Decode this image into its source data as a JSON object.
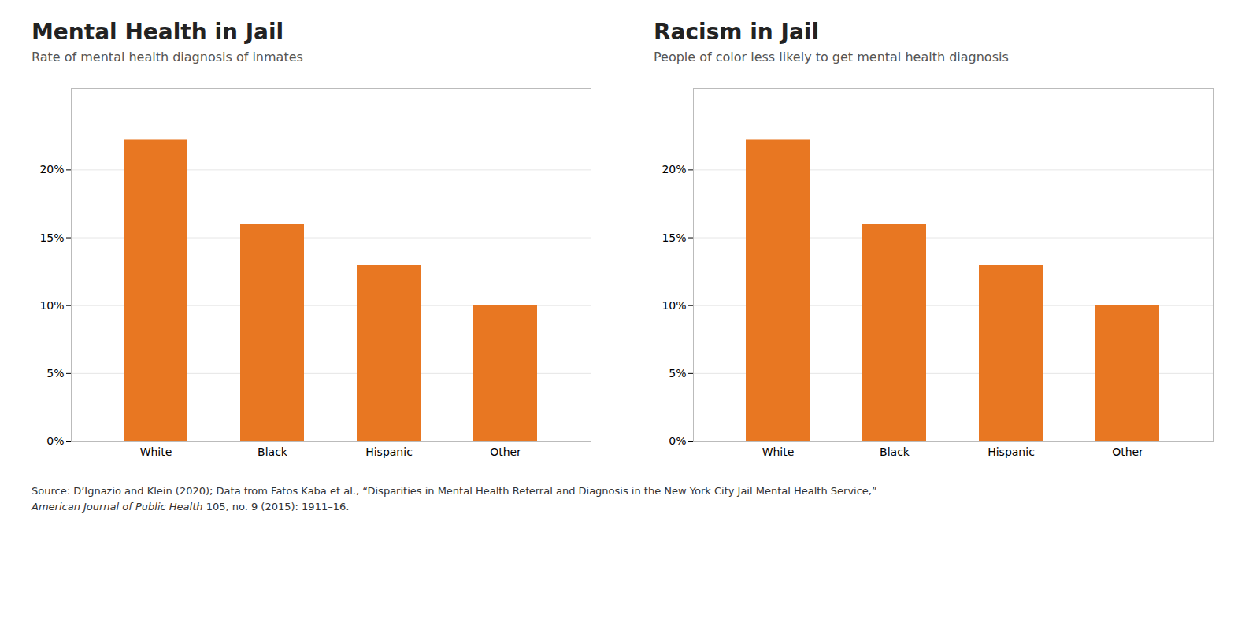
{
  "chart_data": [
    {
      "type": "bar",
      "title": "Mental Health in Jail",
      "subtitle": "Rate of mental health diagnosis of inmates",
      "categories": [
        "White",
        "Black",
        "Hispanic",
        "Other"
      ],
      "values": [
        0.222,
        0.16,
        0.13,
        0.1
      ],
      "color": "#E87722",
      "ylim": [
        0,
        0.26
      ],
      "yticks": [
        {
          "value": 0,
          "label": "0%"
        },
        {
          "value": 0.05,
          "label": "5%"
        },
        {
          "value": 0.1,
          "label": "10%"
        },
        {
          "value": 0.15,
          "label": "15%"
        },
        {
          "value": 0.2,
          "label": "20%"
        }
      ],
      "grid": true
    },
    {
      "type": "bar",
      "title": "Racism in Jail",
      "subtitle": "People of color less likely to get mental health diagnosis",
      "categories": [
        "White",
        "Black",
        "Hispanic",
        "Other"
      ],
      "values": [
        0.222,
        0.16,
        0.13,
        0.1
      ],
      "color": "#E87722",
      "ylim": [
        0,
        0.26
      ],
      "yticks": [
        {
          "value": 0,
          "label": "0%"
        },
        {
          "value": 0.05,
          "label": "5%"
        },
        {
          "value": 0.1,
          "label": "10%"
        },
        {
          "value": 0.15,
          "label": "15%"
        },
        {
          "value": 0.2,
          "label": "20%"
        }
      ],
      "grid": true
    }
  ],
  "source": [
    "Source: D’Ignazio and Klein (2020); Data from Fatos Kaba et al., “Disparities in Mental Health Referral and Diagnosis in the New York City Jail Mental Health Service,”",
    [
      "American Journal of Public Health",
      " 105, no. 9 (2015): 1911–16."
    ]
  ]
}
